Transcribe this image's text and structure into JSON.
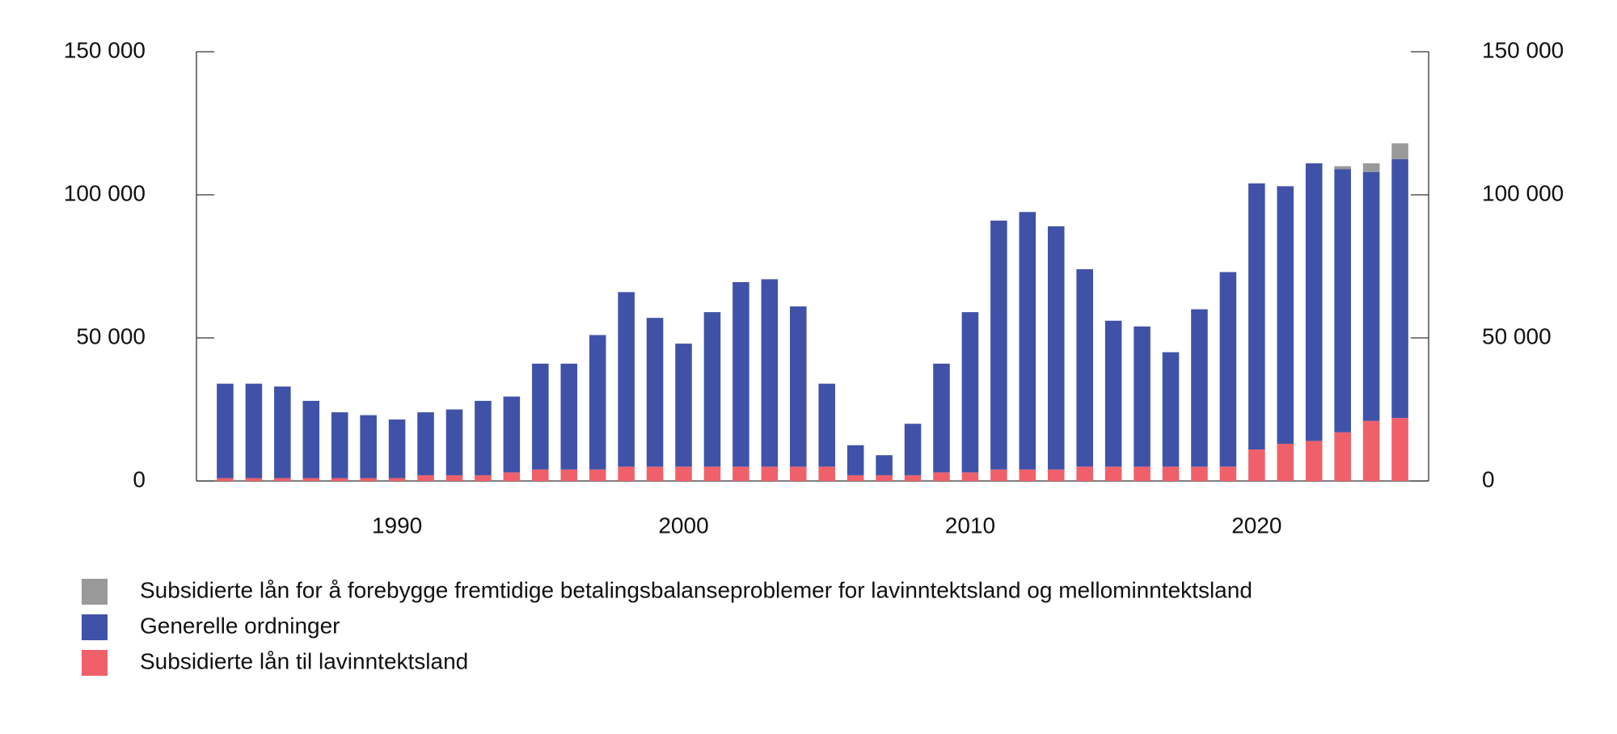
{
  "chart_data": {
    "type": "bar",
    "stacked": true,
    "x": [
      1984,
      1985,
      1986,
      1987,
      1988,
      1989,
      1990,
      1991,
      1992,
      1993,
      1994,
      1995,
      1996,
      1997,
      1998,
      1999,
      2000,
      2001,
      2002,
      2003,
      2004,
      2005,
      2006,
      2007,
      2008,
      2009,
      2010,
      2011,
      2012,
      2013,
      2014,
      2015,
      2016,
      2017,
      2018,
      2019,
      2020,
      2021,
      2022,
      2023,
      2024,
      2025
    ],
    "xlim": [
      1983,
      2026
    ],
    "xticks": [
      1990,
      2000,
      2010,
      2020
    ],
    "ylim": [
      0,
      150000
    ],
    "yticks": [
      0,
      {
        "value": 50000,
        "label": "50 000"
      },
      {
        "value": 100000,
        "label": "100 000"
      },
      {
        "value": 150000,
        "label": "150 000"
      }
    ],
    "y2lim": [
      0,
      150000
    ],
    "y2ticks": [
      0,
      {
        "value": 50000,
        "label": "50 000"
      },
      {
        "value": 100000,
        "label": "100 000"
      },
      {
        "value": 150000,
        "label": "150 000"
      }
    ],
    "series": [
      {
        "name": "Subsidierte lån for å forebygge fremtidige betalingsbalanseproblemer for lavinntektsland og mellominntektsland",
        "color": "#999999",
        "values": [
          0,
          0,
          0,
          0,
          0,
          0,
          0,
          0,
          0,
          0,
          0,
          0,
          0,
          0,
          0,
          0,
          0,
          0,
          0,
          0,
          0,
          0,
          0,
          0,
          0,
          0,
          0,
          0,
          0,
          0,
          0,
          0,
          0,
          0,
          0,
          0,
          0,
          0,
          0,
          1000,
          3000,
          5500
        ]
      },
      {
        "name": "Generelle ordninger",
        "color": "#4052a8",
        "values": [
          33000,
          33000,
          32000,
          27000,
          23000,
          22000,
          20500,
          22000,
          23000,
          26000,
          26500,
          37000,
          37000,
          47000,
          61000,
          52000,
          43000,
          54000,
          64500,
          65500,
          56000,
          29000,
          10500,
          7000,
          18000,
          38000,
          56000,
          87000,
          90000,
          85000,
          69000,
          51000,
          49000,
          40000,
          55000,
          68000,
          93000,
          90000,
          97000,
          92000,
          87000,
          90500
        ]
      },
      {
        "name": "Subsidierte lån til lavinntektsland",
        "color": "#f0606a",
        "values": [
          1000,
          1000,
          1000,
          1000,
          1000,
          1000,
          1000,
          2000,
          2000,
          2000,
          3000,
          4000,
          4000,
          4000,
          5000,
          5000,
          5000,
          5000,
          5000,
          5000,
          5000,
          5000,
          2000,
          2000,
          2000,
          3000,
          3000,
          4000,
          4000,
          4000,
          5000,
          5000,
          5000,
          5000,
          5000,
          5000,
          11000,
          13000,
          14000,
          17000,
          21000,
          22000
        ]
      }
    ]
  }
}
